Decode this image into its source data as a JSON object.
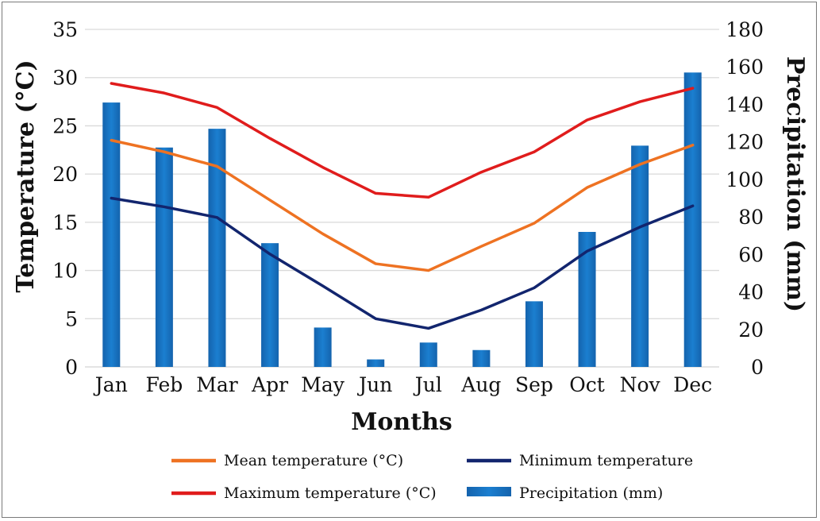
{
  "chart_data": {
    "type": "bar",
    "categories": [
      "Jan",
      "Feb",
      "Mar",
      "Apr",
      "May",
      "Jun",
      "Jul",
      "Aug",
      "Sep",
      "Oct",
      "Nov",
      "Dec"
    ],
    "xlabel": "Months",
    "ylabel_left": "Temperature (°C)",
    "ylabel_right": "Precipitation (mm)",
    "ylim_left": [
      0,
      35
    ],
    "yticks_left": [
      0,
      5,
      10,
      15,
      20,
      25,
      30,
      35
    ],
    "ylim_right": [
      0,
      180
    ],
    "yticks_right": [
      0,
      20,
      40,
      60,
      80,
      100,
      120,
      140,
      160,
      180
    ],
    "grid": true,
    "legend_position": "bottom",
    "bars": {
      "name": "Precipitation (mm)",
      "axis": "right",
      "color": "#1b7fd0",
      "values": [
        141,
        117,
        127,
        66,
        21,
        4,
        13,
        9,
        35,
        72,
        118,
        157
      ]
    },
    "series": [
      {
        "name": "Mean temperature (°C)",
        "axis": "left",
        "type": "line",
        "color": "#ee7222",
        "values": [
          23.5,
          22.3,
          20.8,
          17.3,
          13.8,
          10.7,
          10.0,
          12.5,
          14.9,
          18.6,
          21.0,
          23.0
        ]
      },
      {
        "name": "Minimum temperature",
        "axis": "left",
        "type": "line",
        "color": "#12256e",
        "values": [
          17.5,
          16.6,
          15.5,
          11.7,
          8.4,
          5.0,
          4.0,
          5.9,
          8.2,
          12.0,
          14.5,
          16.7
        ]
      },
      {
        "name": "Maximum temperature (°C)",
        "axis": "left",
        "type": "line",
        "color": "#e01c1c",
        "values": [
          29.4,
          28.4,
          26.9,
          23.7,
          20.7,
          18.0,
          17.6,
          20.2,
          22.3,
          25.6,
          27.5,
          28.9
        ]
      }
    ],
    "legend": {
      "items": [
        {
          "label": "Mean temperature (°C)",
          "color": "#ee7222",
          "kind": "line"
        },
        {
          "label": "Minimum temperature",
          "color": "#12256e",
          "kind": "line"
        },
        {
          "label": "Maximum temperature (°C)",
          "color": "#e01c1c",
          "kind": "line"
        },
        {
          "label": "Precipitation (mm)",
          "color": "#1b7fd0",
          "kind": "bar"
        }
      ]
    }
  }
}
